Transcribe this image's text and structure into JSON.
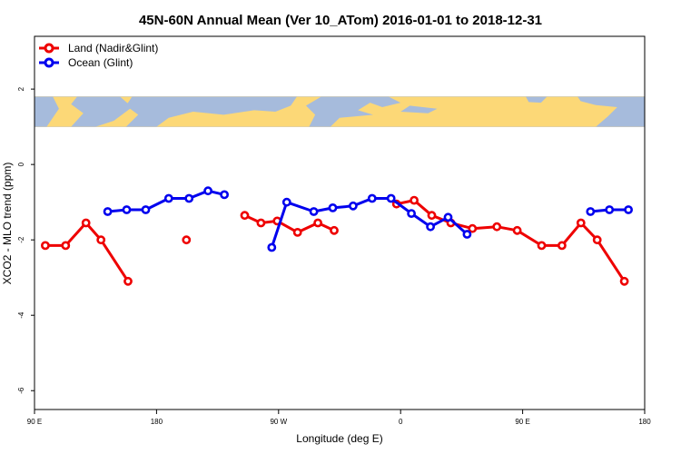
{
  "chart_data": {
    "type": "line",
    "title": "45N-60N Annual Mean (Ver 10_ATom)   2016-01-01 to 2018-12-31",
    "xlabel": "Longitude (deg E)",
    "ylabel": "XCO2 - MLO trend (ppm)",
    "xlim": [
      90,
      540
    ],
    "ylim": [
      -6.5,
      3.4
    ],
    "x_ticks": [
      {
        "value": 90,
        "label": "90 E"
      },
      {
        "value": 180,
        "label": "180"
      },
      {
        "value": 270,
        "label": "90 W"
      },
      {
        "value": 360,
        "label": "0"
      },
      {
        "value": 450,
        "label": "90 E"
      },
      {
        "value": 540,
        "label": "180"
      }
    ],
    "y_ticks": [
      {
        "value": 2,
        "label": "2"
      },
      {
        "value": 0,
        "label": "0"
      },
      {
        "value": -2,
        "label": "-2"
      },
      {
        "value": -4,
        "label": "-4"
      },
      {
        "value": -6,
        "label": "-6"
      }
    ],
    "map_strip": {
      "ymin": 1.0,
      "ymax": 1.8,
      "land_color": "#fcd877",
      "ocean_color": "#a6bbdc"
    },
    "legend_position": "top-left",
    "series": [
      {
        "name": "Land (Nadir&Glint)",
        "color": "#ee0000",
        "segments": [
          [
            [
              98,
              -2.15
            ],
            [
              113,
              -2.15
            ],
            [
              128,
              -1.55
            ],
            [
              139,
              -2.0
            ],
            [
              159,
              -3.1
            ]
          ],
          [
            [
              202,
              -2.0
            ]
          ],
          [
            [
              245,
              -1.35
            ],
            [
              257,
              -1.55
            ],
            [
              269,
              -1.5
            ],
            [
              284,
              -1.8
            ],
            [
              299,
              -1.55
            ],
            [
              311,
              -1.75
            ]
          ],
          [
            [
              357,
              -1.05
            ],
            [
              370,
              -0.95
            ],
            [
              383,
              -1.35
            ],
            [
              397,
              -1.55
            ],
            [
              413,
              -1.7
            ],
            [
              431,
              -1.65
            ],
            [
              446,
              -1.75
            ],
            [
              464,
              -2.15
            ],
            [
              479,
              -2.15
            ],
            [
              493,
              -1.55
            ],
            [
              505,
              -2.0
            ],
            [
              525,
              -3.1
            ]
          ]
        ]
      },
      {
        "name": "Ocean (Glint)",
        "color": "#0000ee",
        "segments": [
          [
            [
              144,
              -1.25
            ],
            [
              158,
              -1.2
            ],
            [
              172,
              -1.2
            ],
            [
              189,
              -0.9
            ],
            [
              204,
              -0.9
            ],
            [
              218,
              -0.7
            ],
            [
              230,
              -0.8
            ]
          ],
          [
            [
              265,
              -2.2
            ],
            [
              276,
              -1.0
            ],
            [
              296,
              -1.25
            ],
            [
              310,
              -1.15
            ],
            [
              325,
              -1.1
            ],
            [
              339,
              -0.9
            ],
            [
              353,
              -0.9
            ],
            [
              368,
              -1.3
            ],
            [
              382,
              -1.65
            ],
            [
              395,
              -1.4
            ],
            [
              409,
              -1.85
            ]
          ],
          [
            [
              500,
              -1.25
            ],
            [
              514,
              -1.2
            ],
            [
              528,
              -1.2
            ]
          ]
        ]
      }
    ]
  }
}
